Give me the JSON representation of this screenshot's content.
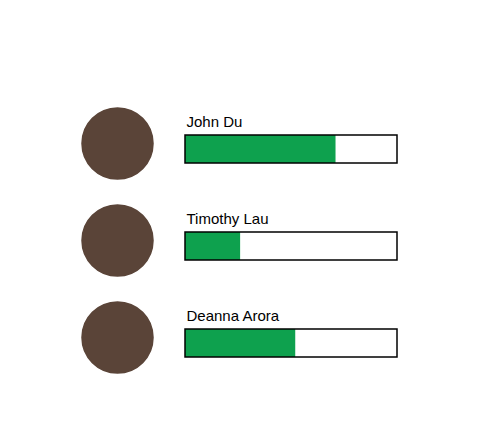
{
  "chart_data": {
    "type": "bar",
    "orientation": "horizontal",
    "categories": [
      "John Du",
      "Timothy Lau",
      "Deanna Arora"
    ],
    "values": [
      71,
      26,
      52
    ],
    "xlim": [
      0,
      100
    ],
    "color": "#0ea14e",
    "tick_labels": "y"
  }
}
